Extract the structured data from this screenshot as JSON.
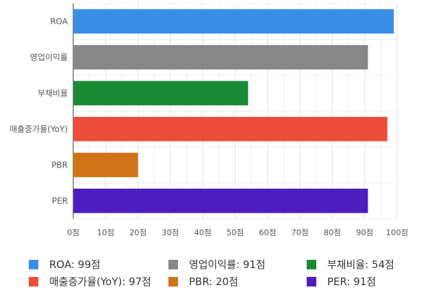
{
  "chart_data": {
    "type": "bar",
    "orientation": "horizontal",
    "categories": [
      "ROA",
      "영업이익률",
      "부채비율",
      "매출증가율(YoY)",
      "PBR",
      "PER"
    ],
    "values": [
      99,
      91,
      54,
      97,
      20,
      91
    ],
    "colors": [
      "#3a8ee6",
      "#878787",
      "#1a8a35",
      "#ec4c3a",
      "#d17317",
      "#4d1dbf"
    ],
    "xlim": [
      0,
      100
    ],
    "x_ticks": [
      0,
      10,
      20,
      30,
      40,
      50,
      60,
      70,
      80,
      90,
      100
    ],
    "x_tick_labels": [
      "0점",
      "10점",
      "20점",
      "30점",
      "40점",
      "50점",
      "60점",
      "70점",
      "80점",
      "90점",
      "100점"
    ],
    "grid": true,
    "legend_position": "bottom",
    "legend": [
      {
        "label": "ROA: 99점",
        "color": "#3a8ee6"
      },
      {
        "label": "영업이익률: 91점",
        "color": "#878787"
      },
      {
        "label": "부채비율: 54점",
        "color": "#1a8a35"
      },
      {
        "label": "매출증가율(YoY): 97점",
        "color": "#ec4c3a"
      },
      {
        "label": "PBR: 20점",
        "color": "#d17317"
      },
      {
        "label": "PER: 91점",
        "color": "#4d1dbf"
      }
    ]
  }
}
